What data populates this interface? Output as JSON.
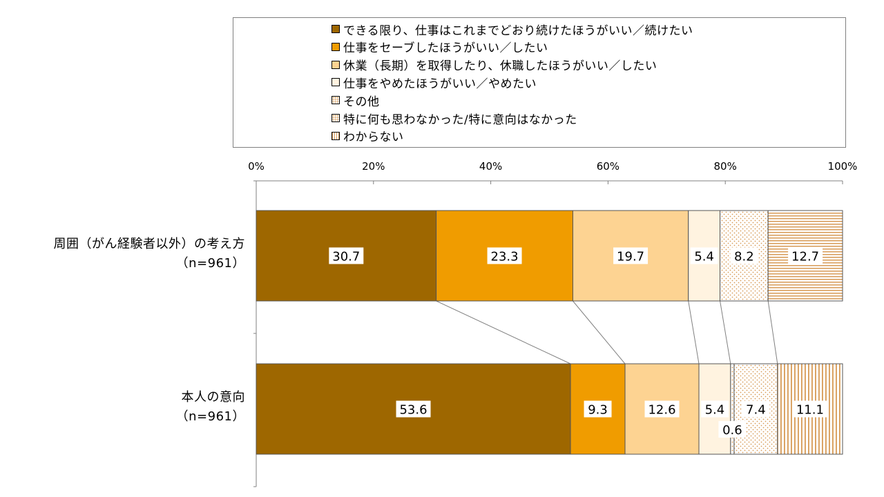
{
  "chart_data": {
    "type": "bar",
    "orientation": "horizontal",
    "stacked": true,
    "percent": true,
    "xlim": [
      0,
      100
    ],
    "x_ticks": [
      "0%",
      "20%",
      "40%",
      "60%",
      "80%",
      "100%"
    ],
    "categories": [
      {
        "name": "周囲（がん経験者以外）の考え方",
        "n": "（n=961）"
      },
      {
        "name": "本人の意向",
        "n": "（n=961）"
      }
    ],
    "legend_position": "top",
    "series": [
      {
        "name": "できる限り、仕事はこれまでどおり続けたほうがいい／続けたい",
        "values": [
          30.7,
          53.6
        ],
        "labels": [
          "30.7",
          "53.6"
        ],
        "color": "#9e6700",
        "pattern": "solid"
      },
      {
        "name": "仕事をセーブしたほうがいい／したい",
        "values": [
          23.3,
          9.3
        ],
        "labels": [
          "23.3",
          "9.3"
        ],
        "color": "#f09c00",
        "pattern": "solid"
      },
      {
        "name": "休業（長期）を取得したり、休職したほうがいい／したい",
        "values": [
          19.7,
          12.6
        ],
        "labels": [
          "19.7",
          "12.6"
        ],
        "color": "#fdd392",
        "pattern": "solid"
      },
      {
        "name": "仕事をやめたほうがいい／やめたい",
        "values": [
          5.4,
          5.4
        ],
        "labels": [
          "5.4",
          "5.4"
        ],
        "color": "#fff3e0",
        "pattern": "solid"
      },
      {
        "name": "その他",
        "values": [
          0,
          0.6
        ],
        "labels": [
          "",
          "0.6"
        ],
        "color": "#ffffff",
        "pattern": "dots"
      },
      {
        "name": "特に何も思わなかった/特に意向はなかった",
        "values": [
          8.2,
          7.4
        ],
        "labels": [
          "8.2",
          "7.4"
        ],
        "color": "#ffffff",
        "pattern": "dots"
      },
      {
        "name": "わからない",
        "values": [
          12.7,
          11.1
        ],
        "labels": [
          "12.7",
          "11.1"
        ],
        "color": "#ffffff",
        "pattern": "stripes"
      }
    ],
    "connector_lines": true
  }
}
